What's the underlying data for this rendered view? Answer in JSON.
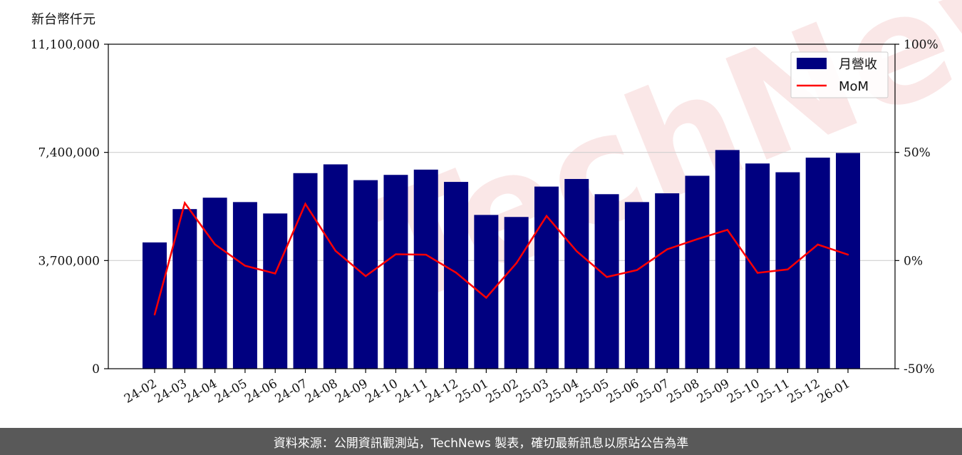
{
  "chart_data": {
    "type": "bar",
    "unit_label": "新台幣仟元",
    "categories": [
      "24-02",
      "24-03",
      "24-04",
      "24-05",
      "24-06",
      "24-07",
      "24-08",
      "24-09",
      "24-10",
      "24-11",
      "24-12",
      "25-01",
      "25-02",
      "25-03",
      "25-04",
      "25-05",
      "25-06",
      "25-07",
      "25-08",
      "25-09",
      "25-10",
      "25-11",
      "25-12",
      "26-01"
    ],
    "series": [
      {
        "name": "月營收",
        "type": "bar",
        "axis": "left",
        "color": "#000080",
        "values": [
          4320000,
          5460000,
          5850000,
          5700000,
          5310000,
          6690000,
          6990000,
          6450000,
          6630000,
          6810000,
          6390000,
          5260000,
          5190000,
          6230000,
          6490000,
          5970000,
          5700000,
          6000000,
          6600000,
          7480000,
          7020000,
          6720000,
          7220000,
          7380000
        ]
      },
      {
        "name": "MoM",
        "type": "line",
        "axis": "right",
        "color": "#ff0000",
        "values": [
          -25,
          26.6,
          7.5,
          -2.4,
          -6,
          26.2,
          4.5,
          -7.2,
          2.9,
          2.7,
          -5.6,
          -17.2,
          -1.2,
          20.6,
          4.3,
          -7.6,
          -4.4,
          5.2,
          9.9,
          14.2,
          -5.7,
          -4.1,
          7.4,
          2.7
        ]
      }
    ],
    "left_axis": {
      "min": 0,
      "max": 11100000,
      "ticks": [
        0,
        3700000,
        7400000,
        11100000
      ],
      "tick_labels": [
        "0",
        "3,700,000",
        "7,400,000",
        "11,100,000"
      ]
    },
    "right_axis": {
      "min": -50,
      "max": 100,
      "ticks": [
        -50,
        0,
        50,
        100
      ],
      "tick_labels": [
        "-50%",
        "0%",
        "50%",
        "100%"
      ]
    },
    "grid": "horizontal",
    "legend_position": "top-right"
  },
  "watermark": "TechNews",
  "footer": {
    "text": "資料來源：公開資訊觀測站，TechNews 製表，確切最新訊息以原站公告為準"
  }
}
